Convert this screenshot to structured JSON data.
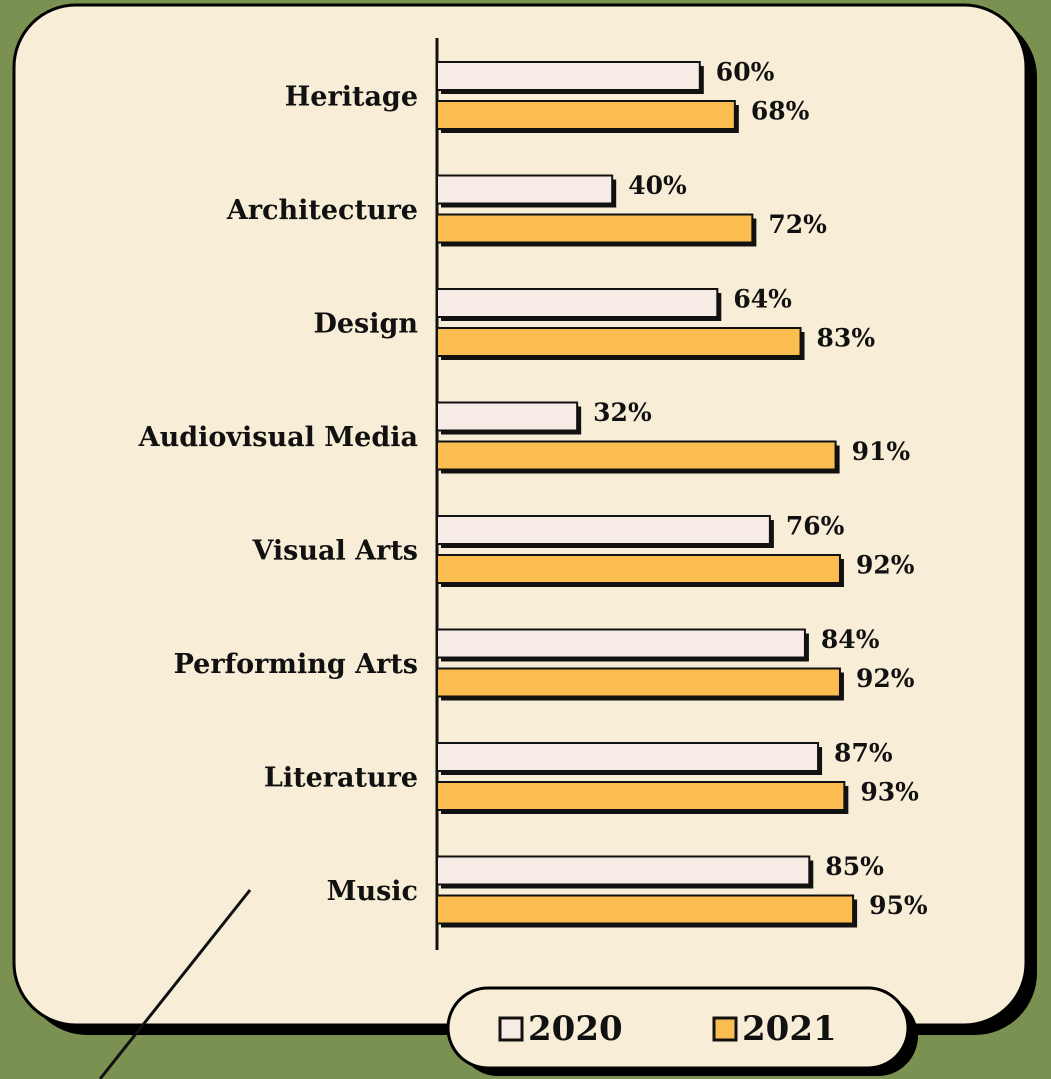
{
  "chart_data": {
    "type": "bar",
    "orientation": "horizontal",
    "categories": [
      "Heritage",
      "Architecture",
      "Design",
      "Audiovisual Media",
      "Visual Arts",
      "Performing Arts",
      "Literature",
      "Music"
    ],
    "series": [
      {
        "name": "2020",
        "color": "#f7ebe6",
        "values": [
          60,
          40,
          64,
          32,
          76,
          84,
          87,
          85
        ],
        "value_labels": [
          "60%",
          "40%",
          "64%",
          "32%",
          "76%",
          "84%",
          "87%",
          "85%"
        ]
      },
      {
        "name": "2021",
        "color": "#fbbd4f",
        "values": [
          68,
          72,
          83,
          91,
          92,
          92,
          93,
          95
        ],
        "value_labels": [
          "68%",
          "72%",
          "83%",
          "91%",
          "92%",
          "92%",
          "93%",
          "95%"
        ]
      }
    ],
    "legend": "bottom-right"
  }
}
